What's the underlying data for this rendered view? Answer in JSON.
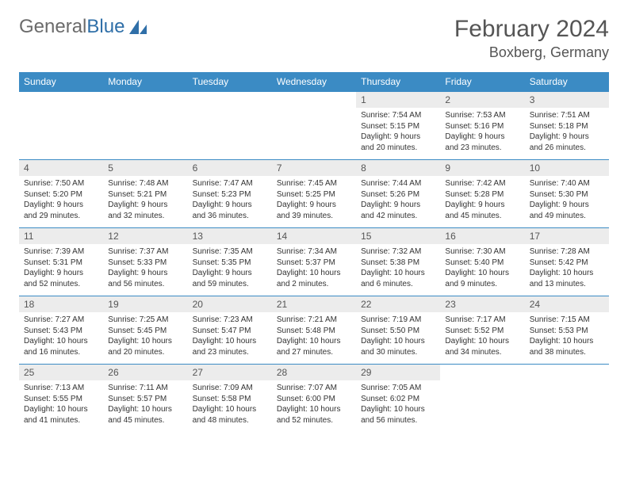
{
  "logo": {
    "text1": "General",
    "text2": "Blue"
  },
  "title": "February 2024",
  "location": "Boxberg, Germany",
  "colors": {
    "header_bg": "#3b8bc4",
    "header_fg": "#ffffff",
    "daynum_bg": "#ececec",
    "border": "#3b8bc4",
    "logo_gray": "#6b6b6b",
    "logo_blue": "#2f6fa8"
  },
  "weekdays": [
    "Sunday",
    "Monday",
    "Tuesday",
    "Wednesday",
    "Thursday",
    "Friday",
    "Saturday"
  ],
  "grid": [
    [
      null,
      null,
      null,
      null,
      {
        "n": "1",
        "sr": "7:54 AM",
        "ss": "5:15 PM",
        "dl": "9 hours and 20 minutes."
      },
      {
        "n": "2",
        "sr": "7:53 AM",
        "ss": "5:16 PM",
        "dl": "9 hours and 23 minutes."
      },
      {
        "n": "3",
        "sr": "7:51 AM",
        "ss": "5:18 PM",
        "dl": "9 hours and 26 minutes."
      }
    ],
    [
      {
        "n": "4",
        "sr": "7:50 AM",
        "ss": "5:20 PM",
        "dl": "9 hours and 29 minutes."
      },
      {
        "n": "5",
        "sr": "7:48 AM",
        "ss": "5:21 PM",
        "dl": "9 hours and 32 minutes."
      },
      {
        "n": "6",
        "sr": "7:47 AM",
        "ss": "5:23 PM",
        "dl": "9 hours and 36 minutes."
      },
      {
        "n": "7",
        "sr": "7:45 AM",
        "ss": "5:25 PM",
        "dl": "9 hours and 39 minutes."
      },
      {
        "n": "8",
        "sr": "7:44 AM",
        "ss": "5:26 PM",
        "dl": "9 hours and 42 minutes."
      },
      {
        "n": "9",
        "sr": "7:42 AM",
        "ss": "5:28 PM",
        "dl": "9 hours and 45 minutes."
      },
      {
        "n": "10",
        "sr": "7:40 AM",
        "ss": "5:30 PM",
        "dl": "9 hours and 49 minutes."
      }
    ],
    [
      {
        "n": "11",
        "sr": "7:39 AM",
        "ss": "5:31 PM",
        "dl": "9 hours and 52 minutes."
      },
      {
        "n": "12",
        "sr": "7:37 AM",
        "ss": "5:33 PM",
        "dl": "9 hours and 56 minutes."
      },
      {
        "n": "13",
        "sr": "7:35 AM",
        "ss": "5:35 PM",
        "dl": "9 hours and 59 minutes."
      },
      {
        "n": "14",
        "sr": "7:34 AM",
        "ss": "5:37 PM",
        "dl": "10 hours and 2 minutes."
      },
      {
        "n": "15",
        "sr": "7:32 AM",
        "ss": "5:38 PM",
        "dl": "10 hours and 6 minutes."
      },
      {
        "n": "16",
        "sr": "7:30 AM",
        "ss": "5:40 PM",
        "dl": "10 hours and 9 minutes."
      },
      {
        "n": "17",
        "sr": "7:28 AM",
        "ss": "5:42 PM",
        "dl": "10 hours and 13 minutes."
      }
    ],
    [
      {
        "n": "18",
        "sr": "7:27 AM",
        "ss": "5:43 PM",
        "dl": "10 hours and 16 minutes."
      },
      {
        "n": "19",
        "sr": "7:25 AM",
        "ss": "5:45 PM",
        "dl": "10 hours and 20 minutes."
      },
      {
        "n": "20",
        "sr": "7:23 AM",
        "ss": "5:47 PM",
        "dl": "10 hours and 23 minutes."
      },
      {
        "n": "21",
        "sr": "7:21 AM",
        "ss": "5:48 PM",
        "dl": "10 hours and 27 minutes."
      },
      {
        "n": "22",
        "sr": "7:19 AM",
        "ss": "5:50 PM",
        "dl": "10 hours and 30 minutes."
      },
      {
        "n": "23",
        "sr": "7:17 AM",
        "ss": "5:52 PM",
        "dl": "10 hours and 34 minutes."
      },
      {
        "n": "24",
        "sr": "7:15 AM",
        "ss": "5:53 PM",
        "dl": "10 hours and 38 minutes."
      }
    ],
    [
      {
        "n": "25",
        "sr": "7:13 AM",
        "ss": "5:55 PM",
        "dl": "10 hours and 41 minutes."
      },
      {
        "n": "26",
        "sr": "7:11 AM",
        "ss": "5:57 PM",
        "dl": "10 hours and 45 minutes."
      },
      {
        "n": "27",
        "sr": "7:09 AM",
        "ss": "5:58 PM",
        "dl": "10 hours and 48 minutes."
      },
      {
        "n": "28",
        "sr": "7:07 AM",
        "ss": "6:00 PM",
        "dl": "10 hours and 52 minutes."
      },
      {
        "n": "29",
        "sr": "7:05 AM",
        "ss": "6:02 PM",
        "dl": "10 hours and 56 minutes."
      },
      null,
      null
    ]
  ],
  "labels": {
    "sunrise": "Sunrise:",
    "sunset": "Sunset:",
    "daylight": "Daylight:"
  }
}
